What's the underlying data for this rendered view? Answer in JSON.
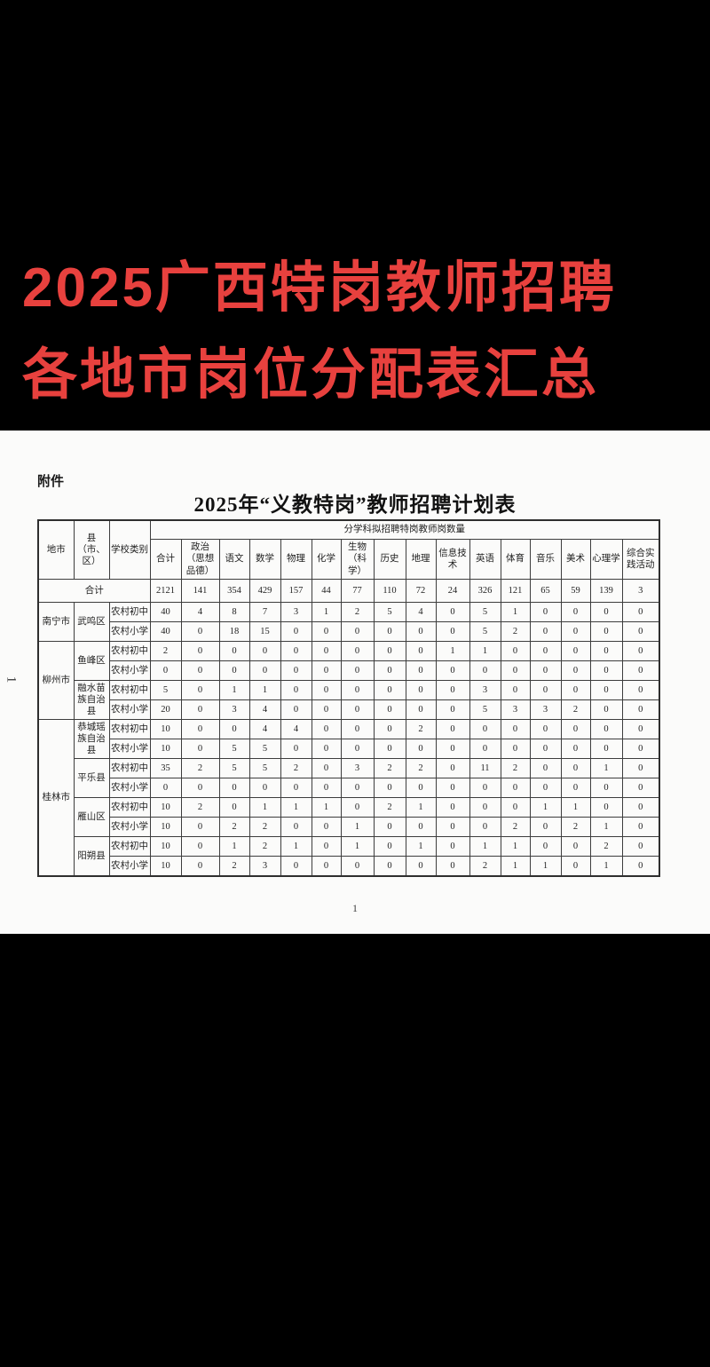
{
  "banner": {
    "line1": "2025广西特岗教师招聘",
    "line2": "各地市岗位分配表汇总",
    "text_color": "#e8413e",
    "background_color": "#000000"
  },
  "document": {
    "attachment_label": "附件",
    "title": "2025年“义教特岗”教师招聘计划表",
    "side_page_number": "1",
    "page_number": "1",
    "table": {
      "header": {
        "col_region": "地市",
        "col_county": "县（市、区）",
        "col_school_type": "学校类别",
        "span_title": "分学科拟招聘特岗教师岗数量",
        "subjects": [
          "合计",
          "政治（思想品德）",
          "语文",
          "数学",
          "物理",
          "化学",
          "生物（科学）",
          "历史",
          "地理",
          "信息技术",
          "英语",
          "体育",
          "音乐",
          "美术",
          "心理学",
          "综合实践活动"
        ]
      },
      "total_row": {
        "label": "合计",
        "values": [
          2121,
          141,
          354,
          429,
          157,
          44,
          77,
          110,
          72,
          24,
          326,
          121,
          65,
          59,
          139,
          3
        ]
      },
      "regions": [
        {
          "name": "南宁市",
          "counties": [
            {
              "name": "武鸣区",
              "rows": [
                {
                  "school_type": "农村初中",
                  "values": [
                    40,
                    4,
                    8,
                    7,
                    3,
                    1,
                    2,
                    5,
                    4,
                    0,
                    5,
                    1,
                    0,
                    0,
                    0,
                    0
                  ]
                },
                {
                  "school_type": "农村小学",
                  "values": [
                    40,
                    0,
                    18,
                    15,
                    0,
                    0,
                    0,
                    0,
                    0,
                    0,
                    5,
                    2,
                    0,
                    0,
                    0,
                    0
                  ]
                }
              ]
            }
          ]
        },
        {
          "name": "柳州市",
          "counties": [
            {
              "name": "鱼峰区",
              "rows": [
                {
                  "school_type": "农村初中",
                  "values": [
                    2,
                    0,
                    0,
                    0,
                    0,
                    0,
                    0,
                    0,
                    0,
                    1,
                    1,
                    0,
                    0,
                    0,
                    0,
                    0
                  ]
                },
                {
                  "school_type": "农村小学",
                  "values": [
                    0,
                    0,
                    0,
                    0,
                    0,
                    0,
                    0,
                    0,
                    0,
                    0,
                    0,
                    0,
                    0,
                    0,
                    0,
                    0
                  ]
                }
              ]
            },
            {
              "name": "融水苗族自治县",
              "rows": [
                {
                  "school_type": "农村初中",
                  "values": [
                    5,
                    0,
                    1,
                    1,
                    0,
                    0,
                    0,
                    0,
                    0,
                    0,
                    3,
                    0,
                    0,
                    0,
                    0,
                    0
                  ]
                },
                {
                  "school_type": "农村小学",
                  "values": [
                    20,
                    0,
                    3,
                    4,
                    0,
                    0,
                    0,
                    0,
                    0,
                    0,
                    5,
                    3,
                    3,
                    2,
                    0,
                    0
                  ]
                }
              ]
            }
          ]
        },
        {
          "name": "桂林市",
          "counties": [
            {
              "name": "恭城瑶族自治县",
              "rows": [
                {
                  "school_type": "农村初中",
                  "values": [
                    10,
                    0,
                    0,
                    4,
                    4,
                    0,
                    0,
                    0,
                    2,
                    0,
                    0,
                    0,
                    0,
                    0,
                    0,
                    0
                  ]
                },
                {
                  "school_type": "农村小学",
                  "values": [
                    10,
                    0,
                    5,
                    5,
                    0,
                    0,
                    0,
                    0,
                    0,
                    0,
                    0,
                    0,
                    0,
                    0,
                    0,
                    0
                  ]
                }
              ]
            },
            {
              "name": "平乐县",
              "rows": [
                {
                  "school_type": "农村初中",
                  "values": [
                    35,
                    2,
                    5,
                    5,
                    2,
                    0,
                    3,
                    2,
                    2,
                    0,
                    11,
                    2,
                    0,
                    0,
                    1,
                    0
                  ]
                },
                {
                  "school_type": "农村小学",
                  "values": [
                    0,
                    0,
                    0,
                    0,
                    0,
                    0,
                    0,
                    0,
                    0,
                    0,
                    0,
                    0,
                    0,
                    0,
                    0,
                    0
                  ]
                }
              ]
            },
            {
              "name": "雁山区",
              "rows": [
                {
                  "school_type": "农村初中",
                  "values": [
                    10,
                    2,
                    0,
                    1,
                    1,
                    1,
                    0,
                    2,
                    1,
                    0,
                    0,
                    0,
                    1,
                    1,
                    0,
                    0
                  ]
                },
                {
                  "school_type": "农村小学",
                  "values": [
                    10,
                    0,
                    2,
                    2,
                    0,
                    0,
                    1,
                    0,
                    0,
                    0,
                    0,
                    2,
                    0,
                    2,
                    1,
                    0
                  ]
                }
              ]
            },
            {
              "name": "阳朔县",
              "rows": [
                {
                  "school_type": "农村初中",
                  "values": [
                    10,
                    0,
                    1,
                    2,
                    1,
                    0,
                    1,
                    0,
                    1,
                    0,
                    1,
                    1,
                    0,
                    0,
                    2,
                    0
                  ]
                },
                {
                  "school_type": "农村小学",
                  "values": [
                    10,
                    0,
                    2,
                    3,
                    0,
                    0,
                    0,
                    0,
                    0,
                    0,
                    2,
                    1,
                    1,
                    0,
                    1,
                    0
                  ]
                }
              ]
            }
          ]
        }
      ]
    }
  }
}
